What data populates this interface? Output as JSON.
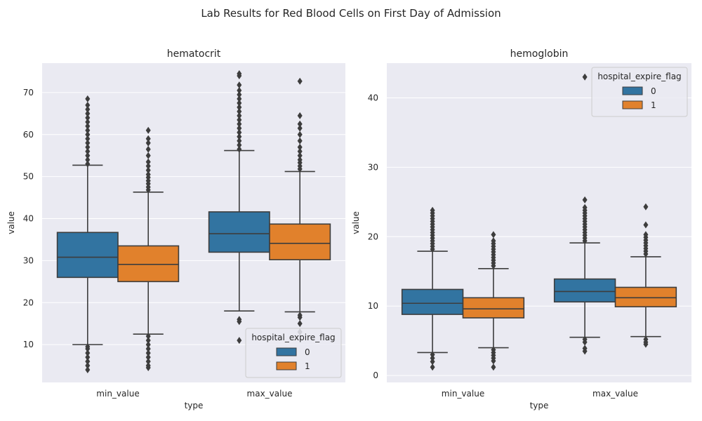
{
  "colors": {
    "series0": "#3274a1",
    "series1": "#e1812c",
    "panel_bg": "#eaeaf2",
    "grid": "#ffffff",
    "line": "#3d3d3d"
  },
  "chart_data": {
    "suptitle": "Lab Results for Red Blood Cells on First Day of Admission",
    "charts": [
      {
        "type": "box",
        "title": "hematocrit",
        "xlabel": "type",
        "ylabel": "value",
        "categories": [
          "min_value",
          "max_value"
        ],
        "ylim": [
          1,
          77
        ],
        "yticks": [
          10,
          20,
          30,
          40,
          50,
          60,
          70
        ],
        "grid": true,
        "legend": {
          "title": "hospital_expire_flag",
          "placement": "lower right",
          "labels": [
            "0",
            "1"
          ]
        },
        "series": [
          {
            "name": "0",
            "boxes": [
              {
                "whislo": 10,
                "q1": 26,
                "med": 30.8,
                "q3": 36.7,
                "whishi": 52.7,
                "fliers_high": [
                  53,
                  54,
                  55,
                  56,
                  57,
                  58,
                  59,
                  60,
                  61,
                  62,
                  63,
                  64,
                  65,
                  66,
                  67,
                  68.5
                ],
                "fliers_low": [
                  9.5,
                  9,
                  8,
                  7,
                  6,
                  5,
                  4
                ]
              },
              {
                "whislo": 18,
                "q1": 32,
                "med": 36.4,
                "q3": 41.6,
                "whishi": 56.2,
                "fliers_high": [
                  56.5,
                  57.5,
                  58.5,
                  59.5,
                  60.5,
                  61.5,
                  62.5,
                  63.5,
                  64.5,
                  65.5,
                  66.5,
                  67.5,
                  68.5,
                  69.5,
                  70.5,
                  71.8,
                  74,
                  74.5
                ],
                "fliers_low": [
                  16,
                  15.5,
                  11
                ]
              }
            ]
          },
          {
            "name": "1",
            "boxes": [
              {
                "whislo": 12.5,
                "q1": 25,
                "med": 29.1,
                "q3": 33.5,
                "whishi": 46.3,
                "fliers_high": [
                  46.8,
                  47.5,
                  48.3,
                  49,
                  49.8,
                  50.5,
                  51.5,
                  52.5,
                  53.5,
                  55,
                  56.5,
                  58,
                  59,
                  61
                ],
                "fliers_low": [
                  12,
                  11,
                  10,
                  9,
                  8,
                  7,
                  6,
                  5,
                  4.5
                ]
              },
              {
                "whislo": 17.8,
                "q1": 30.2,
                "med": 34.1,
                "q3": 38.7,
                "whishi": 51.2,
                "fliers_high": [
                  51.8,
                  52.5,
                  53.3,
                  54,
                  55,
                  56,
                  57,
                  58.5,
                  60,
                  61.5,
                  62.5,
                  64.5,
                  72.7
                ],
                "fliers_low": [
                  17,
                  16.5,
                  15,
                  13
                ]
              }
            ]
          }
        ]
      },
      {
        "type": "box",
        "title": "hemoglobin",
        "xlabel": "type",
        "ylabel": "value",
        "categories": [
          "min_value",
          "max_value"
        ],
        "ylim": [
          -1,
          45
        ],
        "yticks": [
          0,
          10,
          20,
          30,
          40
        ],
        "grid": true,
        "legend": {
          "title": "hospital_expire_flag",
          "placement": "upper right",
          "labels": [
            "0",
            "1"
          ]
        },
        "series": [
          {
            "name": "0",
            "boxes": [
              {
                "whislo": 3.3,
                "q1": 8.8,
                "med": 10.4,
                "q3": 12.4,
                "whishi": 17.9,
                "fliers_high": [
                  18.2,
                  18.6,
                  19,
                  19.4,
                  19.8,
                  20.2,
                  20.6,
                  21,
                  21.4,
                  21.8,
                  22.2,
                  22.6,
                  23,
                  23.4,
                  23.8
                ],
                "fliers_low": [
                  3,
                  2.5,
                  2,
                  1.2
                ]
              },
              {
                "whislo": 5.5,
                "q1": 10.6,
                "med": 12.1,
                "q3": 13.9,
                "whishi": 19.1,
                "fliers_high": [
                  19.4,
                  19.8,
                  20.2,
                  20.6,
                  21,
                  21.4,
                  21.8,
                  22.2,
                  22.6,
                  23,
                  23.4,
                  23.8,
                  24.2,
                  25.3,
                  43
                ],
                "fliers_low": [
                  5.2,
                  4.8,
                  3.9,
                  3.5
                ]
              }
            ]
          },
          {
            "name": "1",
            "boxes": [
              {
                "whislo": 4,
                "q1": 8.3,
                "med": 9.6,
                "q3": 11.2,
                "whishi": 15.4,
                "fliers_high": [
                  15.8,
                  16.2,
                  16.6,
                  17,
                  17.4,
                  17.8,
                  18.2,
                  18.6,
                  19,
                  19.4,
                  20.3
                ],
                "fliers_low": [
                  3.7,
                  3.3,
                  2.9,
                  2.5,
                  2.1,
                  1.2
                ]
              },
              {
                "whislo": 5.6,
                "q1": 9.9,
                "med": 11.2,
                "q3": 12.7,
                "whishi": 17.1,
                "fliers_high": [
                  17.5,
                  17.9,
                  18.3,
                  18.7,
                  19.1,
                  19.5,
                  19.9,
                  20.3,
                  21.7,
                  24.3
                ],
                "fliers_low": [
                  5.2,
                  4.8,
                  4.5
                ]
              }
            ]
          }
        ]
      }
    ]
  }
}
